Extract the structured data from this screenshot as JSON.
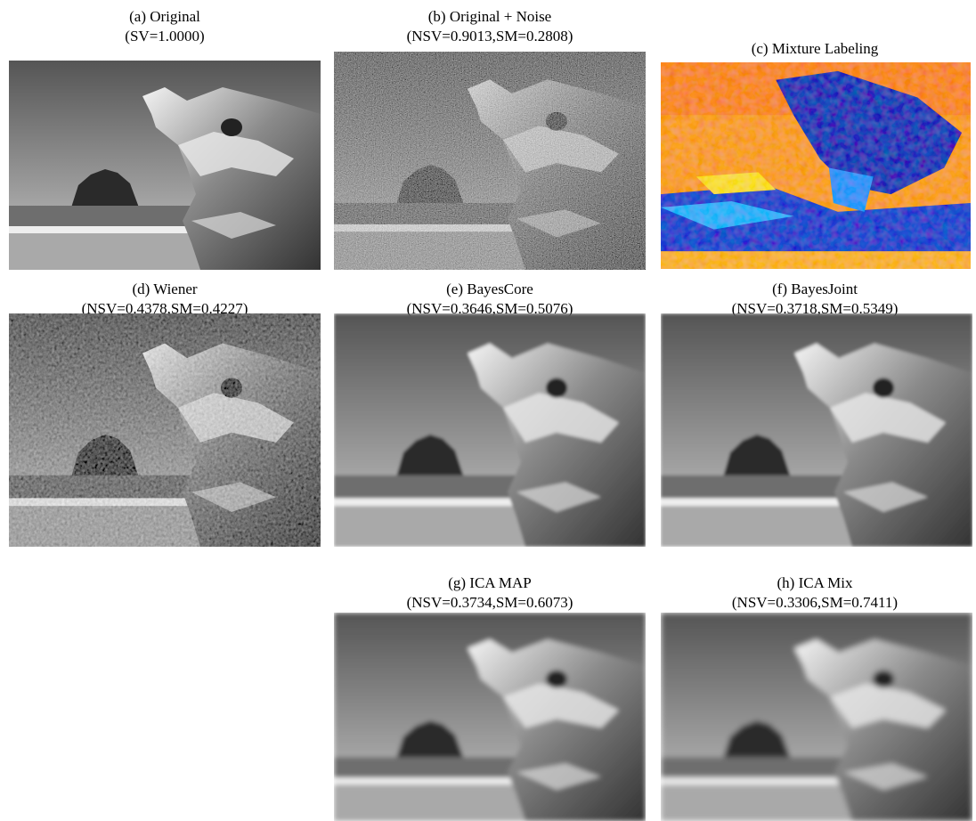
{
  "panels": [
    {
      "title": "(a) Original",
      "subtitle": "(SV=1.0000)"
    },
    {
      "title": "(b) Original + Noise",
      "subtitle": "(NSV=0.9013,SM=0.2808)"
    },
    {
      "title": "(c) Mixture Labeling"
    },
    {
      "title": "(d) Wiener",
      "subtitle": "(NSV=0.4378,SM=0.4227)"
    },
    {
      "title": "(e) BayesCore",
      "subtitle": "(NSV=0.3646,SM=0.5076)"
    },
    {
      "title": "(f) BayesJoint",
      "subtitle": "(NSV=0.3718,SM=0.5349)"
    },
    {
      "title": "(g) ICA MAP",
      "subtitle": "(NSV=0.3734,SM=0.6073)"
    },
    {
      "title": "(h) ICA Mix",
      "subtitle": "(NSV=0.3306,SM=0.7411)"
    }
  ]
}
